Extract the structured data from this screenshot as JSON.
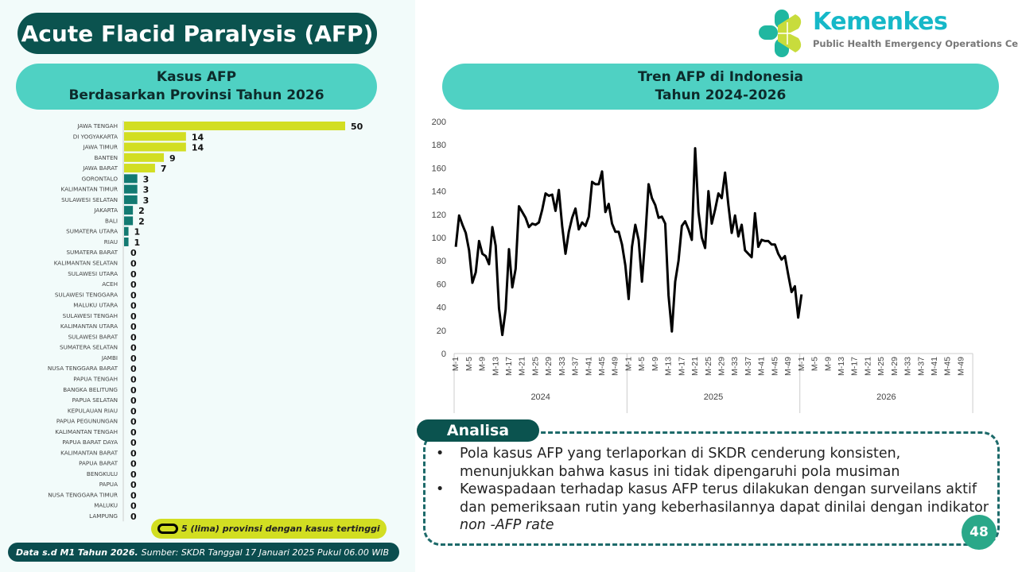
{
  "header": {
    "title": "Acute Flacid Paralysis (AFP)"
  },
  "logo": {
    "name": "Kemenkes",
    "subtitle": "Public Health Emergency Operations Center"
  },
  "bar_panel": {
    "line1": "Kasus AFP",
    "line2": "Berdasarkan Provinsi Tahun 2026"
  },
  "line_panel": {
    "line1": "Tren AFP di Indonesia",
    "line2": "Tahun 2024-2026"
  },
  "legend": {
    "text": "5 (lima) provinsi dengan kasus tertinggi"
  },
  "footer": {
    "bold": "Data s.d M1 Tahun 2026.",
    "text": "Sumber: SKDR Tanggal 17 Januari 2025 Pukul 06.00 WIB"
  },
  "analysis": {
    "title": "Analisa",
    "items": [
      "Pola kasus AFP yang terlaporkan di SKDR cenderung konsisten, menunjukkan bahwa kasus ini tidak dipengaruhi pola musiman",
      "Kewaspadaan terhadap kasus AFP terus dilakukan dengan surveilans aktif dan pemeriksaan rutin yang keberhasilannya dapat dinilai dengan indikator "
    ],
    "italic_suffix": "non -AFP rate"
  },
  "page_number": "48",
  "colors": {
    "dark_teal": "#0b534f",
    "light_teal": "#4fd1c3",
    "highlight": "#d2de22",
    "bar_other": "#137a72"
  },
  "chart_data": [
    {
      "type": "bar",
      "orientation": "horizontal",
      "title": "Kasus AFP Berdasarkan Provinsi Tahun 2026",
      "categories": [
        "JAWA TENGAH",
        "DI YOGYAKARTA",
        "JAWA TIMUR",
        "BANTEN",
        "JAWA BARAT",
        "GORONTALO",
        "KALIMANTAN TIMUR",
        "SULAWESI SELATAN",
        "JAKARTA",
        "BALI",
        "SUMATERA UTARA",
        "RIAU",
        "SUMATERA BARAT",
        "KALIMANTAN SELATAN",
        "SULAWESI UTARA",
        "ACEH",
        "SULAWESI TENGGARA",
        "MALUKU UTARA",
        "SULAWESI TENGAH",
        "KALIMANTAN UTARA",
        "SULAWESI BARAT",
        "SUMATERA SELATAN",
        "JAMBI",
        "NUSA TENGGARA BARAT",
        "PAPUA TENGAH",
        "BANGKA BELITUNG",
        "PAPUA SELATAN",
        "KEPULAUAN RIAU",
        "PAPUA PEGUNUNGAN",
        "KALIMANTAN TENGAH",
        "PAPUA BARAT DAYA",
        "KALIMANTAN BARAT",
        "PAPUA BARAT",
        "BENGKULU",
        "PAPUA",
        "NUSA TENGGARA TIMUR",
        "MALUKU",
        "LAMPUNG"
      ],
      "values": [
        50,
        14,
        14,
        9,
        7,
        3,
        3,
        3,
        2,
        2,
        1,
        1,
        0,
        0,
        0,
        0,
        0,
        0,
        0,
        0,
        0,
        0,
        0,
        0,
        0,
        0,
        0,
        0,
        0,
        0,
        0,
        0,
        0,
        0,
        0,
        0,
        0,
        0
      ],
      "highlight_top": 5,
      "xlim": [
        0,
        50
      ]
    },
    {
      "type": "line",
      "title": "Tren AFP di Indonesia Tahun 2024-2026",
      "ylim": [
        0,
        200
      ],
      "yticks": [
        0,
        20,
        40,
        60,
        80,
        100,
        120,
        140,
        160,
        180,
        200
      ],
      "years": [
        "2024",
        "2025",
        "2026"
      ],
      "weeks_per_year": 52,
      "tick_labels": [
        "M-1",
        "M-5",
        "M-9",
        "M-13",
        "M-17",
        "M-21",
        "M-25",
        "M-29",
        "M-33",
        "M-37",
        "M-41",
        "M-45",
        "M-49"
      ],
      "series": [
        {
          "name": "2024",
          "values": [
            92,
            119,
            111,
            104,
            89,
            61,
            70,
            97,
            86,
            84,
            77,
            109,
            93,
            39,
            16,
            38,
            90,
            57,
            73,
            127,
            122,
            117,
            109,
            112,
            111,
            113,
            124,
            138,
            136,
            137,
            123,
            141,
            110,
            86,
            105,
            117,
            125,
            107,
            113,
            110,
            118,
            148,
            146,
            146,
            157,
            122,
            129,
            112,
            105,
            105,
            94,
            76
          ]
        },
        {
          "name": "2025",
          "values": [
            47,
            92,
            111,
            98,
            62,
            100,
            146,
            134,
            128,
            117,
            118,
            112,
            50,
            19,
            62,
            80,
            110,
            114,
            107,
            98,
            177,
            122,
            100,
            91,
            140,
            112,
            124,
            138,
            134,
            156,
            128,
            104,
            119,
            101,
            111,
            89,
            86,
            83,
            121,
            92,
            98,
            97,
            97,
            94,
            94,
            86,
            81,
            84,
            68,
            53,
            58,
            31
          ]
        },
        {
          "name": "2026",
          "values": [
            51
          ]
        }
      ]
    }
  ]
}
